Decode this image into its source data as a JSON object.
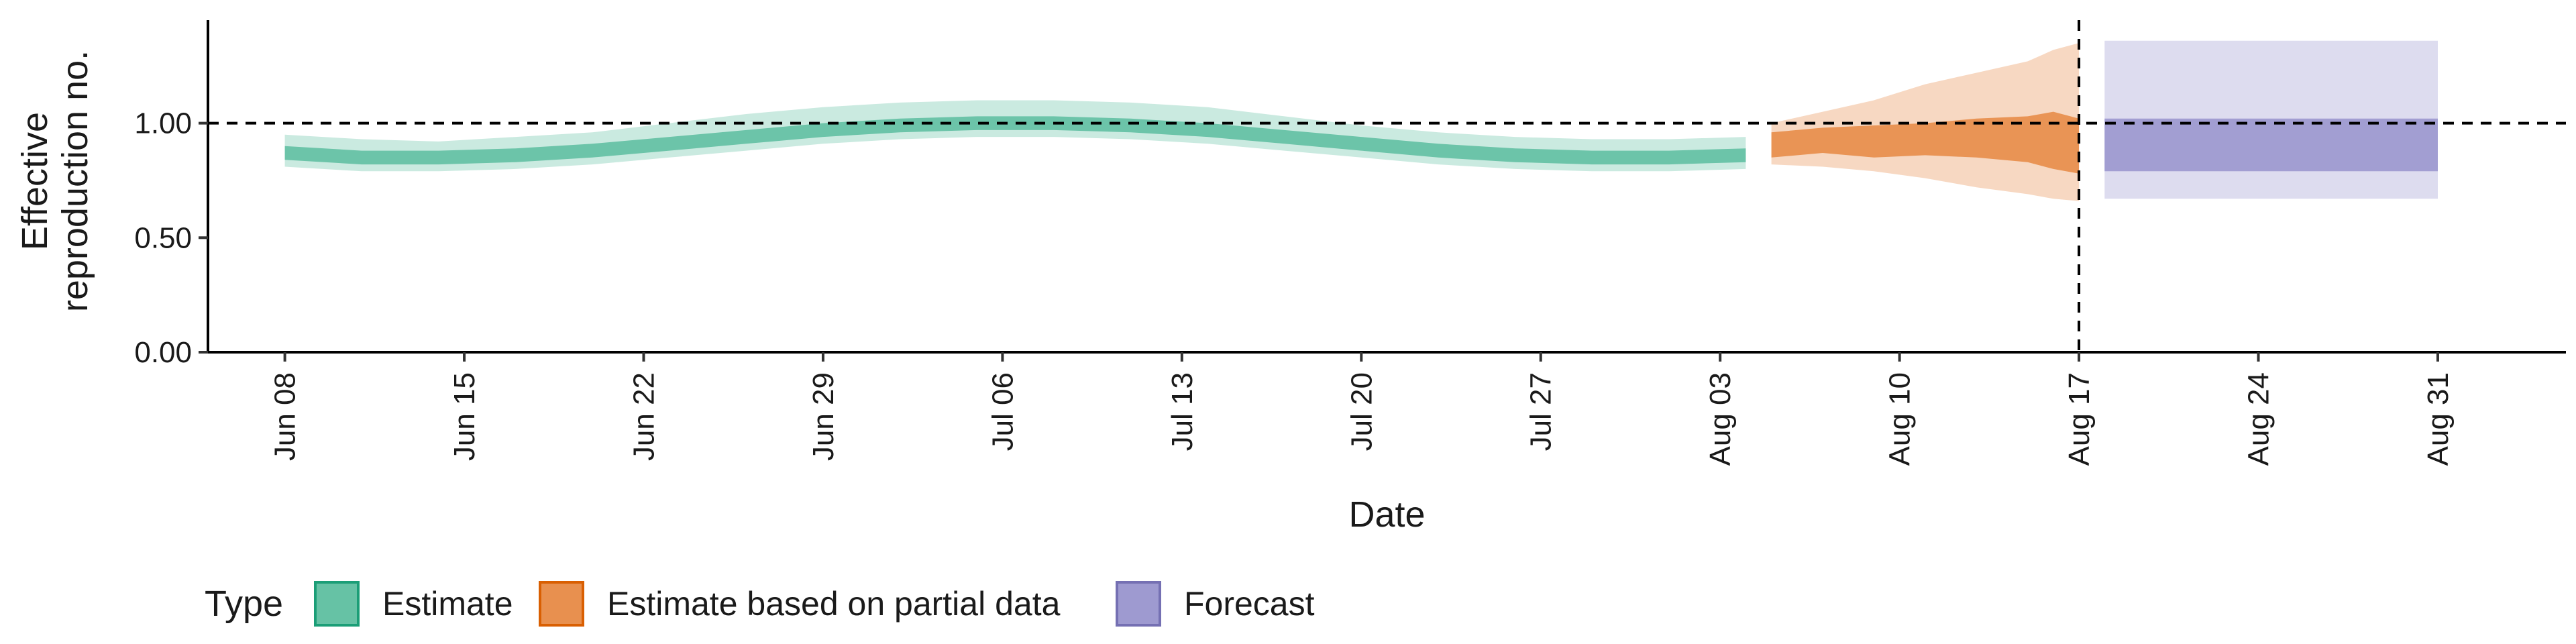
{
  "chart_data": {
    "type": "area",
    "xlabel": "Date",
    "ylabel": [
      "Effective",
      "reproduction no."
    ],
    "ylim": [
      0,
      1.45
    ],
    "yticks": [
      0,
      0.5,
      1,
      1.5
    ],
    "ytick_labels": [
      "0.00",
      "0.50",
      "1.00",
      ""
    ],
    "xlim": [
      "2020-06-05",
      "2020-09-05"
    ],
    "xticks": [
      "2020-06-08",
      "2020-06-15",
      "2020-06-22",
      "2020-06-29",
      "2020-07-06",
      "2020-07-13",
      "2020-07-20",
      "2020-07-27",
      "2020-08-03",
      "2020-08-10",
      "2020-08-17",
      "2020-08-24",
      "2020-08-31"
    ],
    "xtick_labels": [
      "Jun 08",
      "Jun 15",
      "Jun 22",
      "Jun 29",
      "Jul 06",
      "Jul 13",
      "Jul 20",
      "Jul 27",
      "Aug 03",
      "Aug 10",
      "Aug 17",
      "Aug 24",
      "Aug 31"
    ],
    "reference_hline": 1.0,
    "reference_vline": "2020-08-17",
    "grid": false,
    "legend": {
      "title": "Type",
      "position": "bottom",
      "entries": [
        "Estimate",
        "Estimate based on partial data",
        "Forecast"
      ]
    },
    "colors": {
      "Estimate": {
        "fill": "#66c2a5",
        "stroke": "#1b9e77"
      },
      "Estimate based on partial data": {
        "fill": "#e8904f",
        "stroke": "#d95f02"
      },
      "Forecast": {
        "fill": "#9e9ad0",
        "stroke": "#7570b3"
      }
    },
    "series": [
      {
        "name": "Estimate",
        "x": [
          "2020-06-08",
          "2020-06-11",
          "2020-06-14",
          "2020-06-17",
          "2020-06-20",
          "2020-06-23",
          "2020-06-26",
          "2020-06-29",
          "2020-07-02",
          "2020-07-05",
          "2020-07-08",
          "2020-07-11",
          "2020-07-14",
          "2020-07-17",
          "2020-07-20",
          "2020-07-23",
          "2020-07-26",
          "2020-07-29",
          "2020-08-01",
          "2020-08-04"
        ],
        "outer_low": [
          0.81,
          0.79,
          0.79,
          0.8,
          0.82,
          0.85,
          0.88,
          0.91,
          0.93,
          0.94,
          0.94,
          0.93,
          0.91,
          0.88,
          0.85,
          0.82,
          0.8,
          0.79,
          0.79,
          0.8
        ],
        "inner_low": [
          0.84,
          0.82,
          0.82,
          0.83,
          0.85,
          0.88,
          0.91,
          0.94,
          0.96,
          0.97,
          0.97,
          0.96,
          0.94,
          0.91,
          0.88,
          0.85,
          0.83,
          0.82,
          0.82,
          0.83
        ],
        "inner_high": [
          0.9,
          0.88,
          0.88,
          0.89,
          0.91,
          0.94,
          0.97,
          1.0,
          1.02,
          1.03,
          1.03,
          1.02,
          1.0,
          0.97,
          0.94,
          0.91,
          0.89,
          0.88,
          0.88,
          0.89
        ],
        "outer_high": [
          0.95,
          0.93,
          0.92,
          0.94,
          0.96,
          1.0,
          1.04,
          1.07,
          1.09,
          1.1,
          1.1,
          1.09,
          1.07,
          1.03,
          0.99,
          0.96,
          0.94,
          0.93,
          0.93,
          0.94
        ]
      },
      {
        "name": "Estimate based on partial data",
        "x": [
          "2020-08-05",
          "2020-08-07",
          "2020-08-09",
          "2020-08-11",
          "2020-08-13",
          "2020-08-15",
          "2020-08-16",
          "2020-08-17"
        ],
        "outer_low": [
          0.82,
          0.81,
          0.79,
          0.76,
          0.72,
          0.69,
          0.67,
          0.66
        ],
        "inner_low": [
          0.85,
          0.87,
          0.85,
          0.86,
          0.85,
          0.83,
          0.8,
          0.78
        ],
        "inner_high": [
          0.96,
          0.98,
          0.99,
          1.0,
          1.02,
          1.03,
          1.05,
          1.02
        ],
        "outer_high": [
          1.0,
          1.05,
          1.1,
          1.17,
          1.22,
          1.27,
          1.32,
          1.35
        ]
      },
      {
        "name": "Forecast",
        "x": [
          "2020-08-18",
          "2020-08-31"
        ],
        "outer_low": [
          0.67,
          0.67
        ],
        "inner_low": [
          0.79,
          0.79
        ],
        "inner_high": [
          1.02,
          1.02
        ],
        "outer_high": [
          1.36,
          1.36
        ]
      }
    ]
  }
}
